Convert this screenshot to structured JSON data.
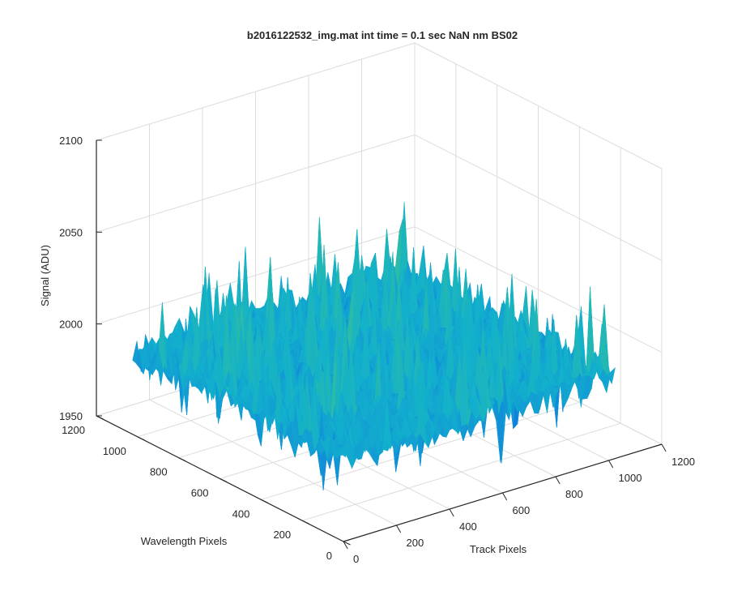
{
  "chart_data": {
    "type": "surface",
    "title": "b2016122532_img.mat int time = 0.1 sec  NaN nm BS02",
    "xlabel": "Track Pixels",
    "ylabel": "Wavelength Pixels",
    "zlabel": "Signal (ADU)",
    "xlim": [
      0,
      1200
    ],
    "ylim": [
      0,
      1200
    ],
    "zlim": [
      1950,
      2100
    ],
    "xticks": [
      "0",
      "200",
      "400",
      "600",
      "800",
      "1000",
      "1200"
    ],
    "yticks": [
      "0",
      "200",
      "400",
      "600",
      "800",
      "1000",
      "1200"
    ],
    "zticks": [
      "1950",
      "2000",
      "2050",
      "2100"
    ],
    "grid": true,
    "colormap": "parula",
    "surface": {
      "x_range": [
        0,
        1024
      ],
      "y_range": [
        0,
        1024
      ],
      "mean": 1995,
      "min_approx": 1960,
      "max_approx": 2065
    }
  }
}
